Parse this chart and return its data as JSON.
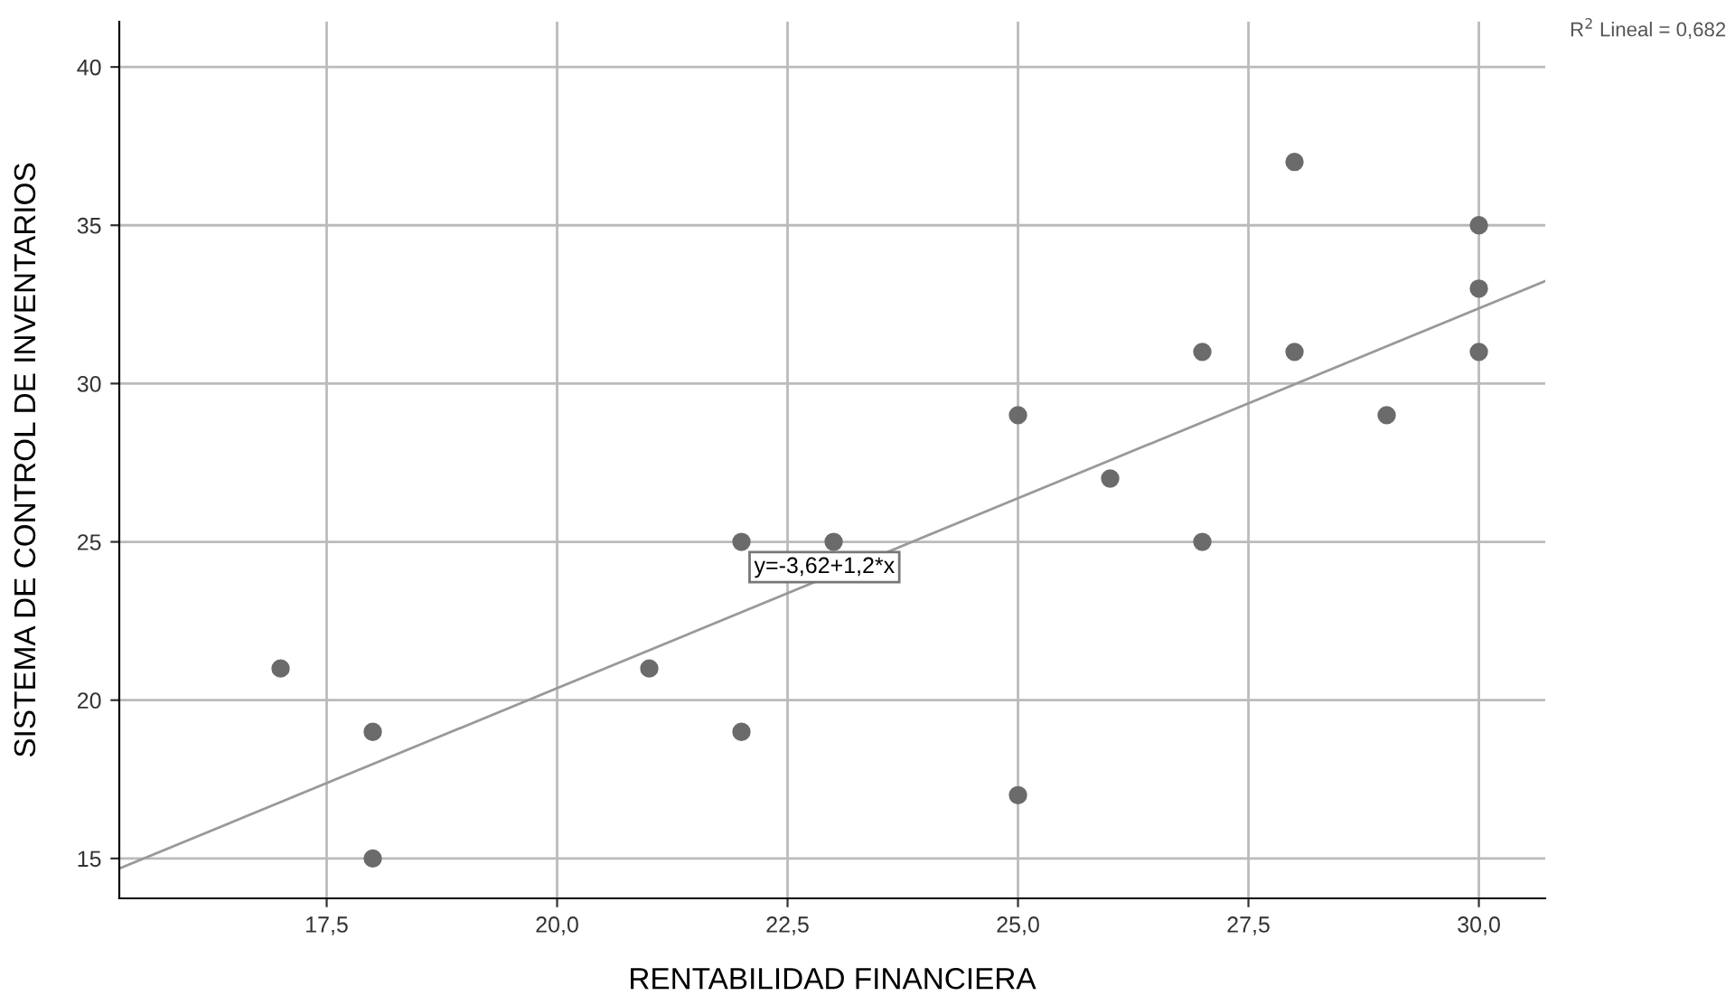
{
  "chart_data": {
    "type": "scatter",
    "xlabel": "RENTABILIDAD FINANCIERA",
    "ylabel": "SISTEMA DE CONTROL DE INVENTARIOS",
    "series": [
      {
        "color": "#6b6b6b",
        "marker": "circle",
        "x": [
          17,
          18,
          18,
          21,
          22,
          22,
          23,
          25,
          25,
          26,
          27,
          27,
          28,
          28,
          29,
          30,
          30,
          30
        ],
        "values": [
          21,
          19,
          15,
          21,
          25,
          19,
          25,
          29,
          17,
          27,
          31,
          25,
          37,
          31,
          29,
          35,
          33,
          31
        ]
      },
      {
        "type": "line",
        "color": "#999999",
        "line_style": "solid",
        "x": [
          15.25,
          30.72
        ],
        "values": [
          14.68,
          33.24
        ]
      }
    ],
    "xlim": [
      15.25,
      30.72
    ],
    "ylim": [
      13.74,
      41.43
    ],
    "xticks": [
      {
        "value": 17.5,
        "label": "17,5"
      },
      {
        "value": 20,
        "label": "20,0"
      },
      {
        "value": 22.5,
        "label": "22,5"
      },
      {
        "value": 25,
        "label": "25,0"
      },
      {
        "value": 27.5,
        "label": "27,5"
      },
      {
        "value": 30,
        "label": "30,0"
      }
    ],
    "yticks": [
      15,
      20,
      25,
      30,
      35,
      40
    ],
    "grid": true,
    "annotations": [
      {
        "text": "y=-3,62+1,2*x",
        "x": 22.9,
        "y": 24.2
      },
      "R$^{2}$ Lineal = 0,682"
    ]
  }
}
